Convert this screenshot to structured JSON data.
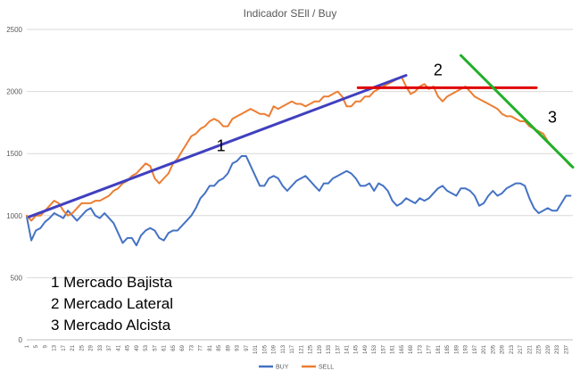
{
  "chart_data": {
    "type": "line",
    "title": "Indicador SEll / Buy",
    "xlabel": "",
    "ylabel": "",
    "ylim": [
      0,
      2500
    ],
    "yticks": [
      0,
      500,
      1000,
      1500,
      2000,
      2500
    ],
    "grid": true,
    "legend_position": "bottom",
    "x_range": [
      1,
      240
    ],
    "x_tick_labels": [
      1,
      5,
      9,
      13,
      17,
      21,
      25,
      29,
      33,
      37,
      41,
      45,
      49,
      53,
      57,
      61,
      65,
      69,
      73,
      77,
      81,
      85,
      89,
      93,
      97,
      101,
      105,
      109,
      113,
      117,
      121,
      125,
      129,
      133,
      137,
      141,
      145,
      149,
      153,
      157,
      161,
      165,
      169,
      173,
      177,
      181,
      185,
      189,
      193,
      197,
      201,
      205,
      209,
      213,
      217,
      221,
      225,
      229,
      233,
      237
    ],
    "series": [
      {
        "name": "BUY",
        "color": "#4472C4",
        "x": [
          1,
          3,
          5,
          7,
          9,
          11,
          13,
          15,
          17,
          19,
          21,
          23,
          25,
          27,
          29,
          31,
          33,
          35,
          37,
          39,
          41,
          43,
          45,
          47,
          49,
          51,
          53,
          55,
          57,
          59,
          61,
          63,
          65,
          67,
          69,
          71,
          73,
          75,
          77,
          79,
          81,
          83,
          85,
          87,
          89,
          91,
          93,
          95,
          97,
          99,
          101,
          103,
          105,
          107,
          109,
          111,
          113,
          115,
          117,
          119,
          121,
          123,
          125,
          127,
          129,
          131,
          133,
          135,
          137,
          139,
          141,
          143,
          145,
          147,
          149,
          151,
          153,
          155,
          157,
          159,
          161,
          163,
          165,
          167,
          169,
          171,
          173,
          175,
          177,
          179,
          181,
          183,
          185,
          187,
          189,
          191,
          193,
          195,
          197,
          199,
          201,
          203,
          205,
          207,
          209,
          211,
          213,
          215,
          217,
          219,
          221,
          223,
          225,
          227,
          229,
          231,
          233,
          235,
          237,
          239
        ],
        "values": [
          990,
          800,
          880,
          900,
          950,
          980,
          1020,
          1000,
          980,
          1040,
          1000,
          960,
          1000,
          1040,
          1060,
          1000,
          980,
          1020,
          980,
          940,
          860,
          780,
          820,
          820,
          760,
          840,
          880,
          900,
          880,
          820,
          800,
          860,
          880,
          880,
          920,
          960,
          1000,
          1060,
          1140,
          1180,
          1240,
          1240,
          1280,
          1300,
          1340,
          1420,
          1440,
          1480,
          1480,
          1400,
          1320,
          1240,
          1240,
          1300,
          1320,
          1300,
          1240,
          1200,
          1240,
          1280,
          1300,
          1320,
          1280,
          1240,
          1200,
          1260,
          1260,
          1300,
          1320,
          1340,
          1360,
          1340,
          1300,
          1240,
          1240,
          1260,
          1200,
          1260,
          1240,
          1200,
          1120,
          1080,
          1100,
          1140,
          1120,
          1100,
          1140,
          1120,
          1140,
          1180,
          1220,
          1240,
          1200,
          1180,
          1160,
          1220,
          1220,
          1200,
          1160,
          1080,
          1100,
          1160,
          1200,
          1160,
          1180,
          1220,
          1240,
          1260,
          1260,
          1240,
          1140,
          1060,
          1020,
          1040,
          1060,
          1040,
          1040,
          1100,
          1160,
          1160
        ]
      },
      {
        "name": "SELL",
        "color": "#ED7D31",
        "x": [
          1,
          3,
          5,
          7,
          9,
          11,
          13,
          15,
          17,
          19,
          21,
          23,
          25,
          27,
          29,
          31,
          33,
          35,
          37,
          39,
          41,
          43,
          45,
          47,
          49,
          51,
          53,
          55,
          57,
          59,
          61,
          63,
          65,
          67,
          69,
          71,
          73,
          75,
          77,
          79,
          81,
          83,
          85,
          87,
          89,
          91,
          93,
          95,
          97,
          99,
          101,
          103,
          105,
          107,
          109,
          111,
          113,
          115,
          117,
          119,
          121,
          123,
          125,
          127,
          129,
          131,
          133,
          135,
          137,
          139,
          141,
          143,
          145,
          147,
          149,
          151,
          153,
          155,
          157,
          159,
          161,
          163,
          165,
          167,
          169,
          171,
          173,
          175,
          177,
          179,
          181,
          183,
          185,
          187,
          189,
          191,
          193,
          195,
          197,
          199,
          201,
          203,
          205,
          207,
          209,
          211,
          213,
          215,
          217,
          219,
          221,
          223,
          225,
          227,
          229,
          231,
          233,
          235,
          237,
          239
        ],
        "values": [
          1000,
          960,
          1000,
          1000,
          1040,
          1080,
          1120,
          1100,
          1040,
          1000,
          1020,
          1060,
          1100,
          1100,
          1100,
          1120,
          1120,
          1140,
          1160,
          1200,
          1220,
          1260,
          1280,
          1320,
          1340,
          1380,
          1420,
          1400,
          1300,
          1260,
          1300,
          1340,
          1420,
          1460,
          1520,
          1580,
          1640,
          1660,
          1700,
          1720,
          1760,
          1780,
          1760,
          1720,
          1720,
          1780,
          1800,
          1820,
          1840,
          1860,
          1840,
          1820,
          1820,
          1800,
          1880,
          1860,
          1880,
          1900,
          1920,
          1900,
          1900,
          1880,
          1900,
          1920,
          1920,
          1960,
          1960,
          1980,
          2000,
          1960,
          1880,
          1880,
          1920,
          1920,
          1960,
          1960,
          2000,
          2020,
          2040,
          2060,
          2080,
          2100,
          2120,
          2040,
          1980,
          2000,
          2040,
          2060,
          2020,
          2040,
          1960,
          1920,
          1960,
          1980,
          2000,
          2020,
          2040,
          2000,
          1960,
          1940,
          1920,
          1900,
          1880,
          1860,
          1820,
          1800,
          1800,
          1780,
          1760,
          1760,
          1720,
          1700,
          1680,
          1660,
          1600,
          1560,
          1520,
          1480,
          1440,
          1400
        ]
      }
    ],
    "trend_lines": [
      {
        "label": "1",
        "color": "#4040C0",
        "x": [
          2,
          167
        ],
        "y": [
          990,
          2130
        ]
      },
      {
        "label": "2",
        "color": "#E00000",
        "x": [
          146,
          224
        ],
        "y": [
          2030,
          2030
        ]
      },
      {
        "label": "3",
        "color": "#22B02A",
        "x": [
          191,
          240
        ],
        "y": [
          2290,
          1390
        ]
      }
    ],
    "notes": [
      "1 Mercado Bajista",
      "2 Mercado Lateral",
      "3 Mercado Alcista"
    ]
  }
}
